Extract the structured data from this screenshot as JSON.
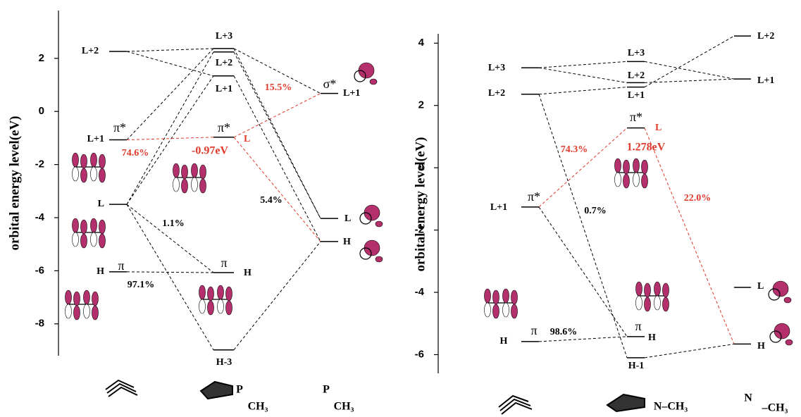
{
  "panels": [
    {
      "ylabel": "orbital energy level(eV)",
      "ylim": [
        -9.2,
        3.8
      ],
      "yticks": [
        2,
        0,
        -2,
        -4,
        -6,
        -8
      ],
      "columns": [
        {
          "levels": [
            {
              "label": "L+2",
              "energy": 2.26
            },
            {
              "label": "L+1",
              "energy": -1.07,
              "sym": "π*"
            },
            {
              "label": "L",
              "energy": -3.5
            },
            {
              "label": "H",
              "energy": -6.04,
              "sym": "π"
            }
          ]
        },
        {
          "levels": [
            {
              "label": "L+3",
              "energy": 2.37
            },
            {
              "label": "L+2",
              "energy": 2.24
            },
            {
              "label": "L+1",
              "energy": 1.34
            },
            {
              "label": "L",
              "energy": -0.97,
              "sym": "π*",
              "color": "#e03a2a",
              "energy_label": "-0.97eV"
            },
            {
              "label": "H",
              "energy": -6.07,
              "sym": "π"
            },
            {
              "label": "H-3",
              "energy": -8.98
            }
          ],
          "formula": [
            "P",
            "CH₃"
          ]
        },
        {
          "levels": [
            {
              "label": "L+1",
              "energy": 0.68,
              "sym": "σ*"
            },
            {
              "label": "L",
              "energy": -4.03
            },
            {
              "label": "H",
              "energy": -4.9
            }
          ],
          "formula": [
            "P",
            "CH₃"
          ]
        }
      ],
      "connections": [
        {
          "from": [
            0,
            0
          ],
          "to": [
            1,
            0
          ],
          "color": "#000000"
        },
        {
          "from": [
            0,
            0
          ],
          "to": [
            1,
            2
          ],
          "color": "#000000"
        },
        {
          "from": [
            0,
            1
          ],
          "to": [
            1,
            0
          ],
          "color": "#000000"
        },
        {
          "from": [
            0,
            2
          ],
          "to": [
            1,
            1
          ],
          "color": "#000000"
        },
        {
          "from": [
            0,
            2
          ],
          "to": [
            1,
            2
          ],
          "color": "#000000"
        },
        {
          "from": [
            0,
            1
          ],
          "to": [
            1,
            3
          ],
          "color": "#e03a2a",
          "label": "74.6%",
          "label_color": "#e03a2a"
        },
        {
          "from": [
            1,
            3
          ],
          "to": [
            2,
            0
          ],
          "color": "#e03a2a",
          "label": "15.5%",
          "label_color": "#e03a2a"
        },
        {
          "from": [
            1,
            3
          ],
          "to": [
            2,
            2
          ],
          "color": "#e03a2a",
          "label": "5.4%",
          "label_color": "#000000"
        },
        {
          "from": [
            0,
            2
          ],
          "to": [
            1,
            4
          ],
          "color": "#000000",
          "label": "1.1%",
          "label_color": "#000000"
        },
        {
          "from": [
            0,
            2
          ],
          "to": [
            1,
            5
          ],
          "color": "#000000"
        },
        {
          "from": [
            0,
            3
          ],
          "to": [
            1,
            4
          ],
          "color": "#000000",
          "label": "97.1%",
          "label_color": "#000000"
        },
        {
          "from": [
            1,
            0
          ],
          "to": [
            2,
            0
          ],
          "color": "#000000"
        },
        {
          "from": [
            1,
            0
          ],
          "to": [
            2,
            1
          ],
          "color": "#000000"
        },
        {
          "from": [
            1,
            1
          ],
          "to": [
            2,
            1
          ],
          "color": "#000000"
        },
        {
          "from": [
            1,
            2
          ],
          "to": [
            2,
            2
          ],
          "color": "#000000"
        },
        {
          "from": [
            1,
            5
          ],
          "to": [
            2,
            2
          ],
          "color": "#000000"
        }
      ]
    },
    {
      "ylabel": "orbital energy level(eV)",
      "ylim": [
        -6.6,
        4.3
      ],
      "yticks": [
        4,
        2,
        0,
        -2,
        -4,
        -6
      ],
      "columns": [
        {
          "levels": [
            {
              "label": "L+3",
              "energy": 3.21
            },
            {
              "label": "L+2",
              "energy": 2.36
            },
            {
              "label": "L+1",
              "energy": -1.26,
              "sym": "π*"
            },
            {
              "label": "H",
              "energy": -5.58,
              "sym": "π"
            }
          ]
        },
        {
          "levels": [
            {
              "label": "L+3",
              "energy": 3.41
            },
            {
              "label": "L+2",
              "energy": 2.73
            },
            {
              "label": "L+1",
              "energy": 2.59
            },
            {
              "label": "L",
              "energy": 1.278,
              "sym": "π*",
              "color": "#e03a2a",
              "energy_label": "1.278eV"
            },
            {
              "label": "H",
              "energy": -5.42,
              "sym": "π"
            },
            {
              "label": "H-1",
              "energy": -6.1
            }
          ],
          "formula": [
            "N–CH₃"
          ]
        },
        {
          "levels": [
            {
              "label": "L+2",
              "energy": 4.23
            },
            {
              "label": "L+1",
              "energy": 2.85
            },
            {
              "label": "L",
              "energy": -3.84
            },
            {
              "label": "H",
              "energy": -5.66
            }
          ],
          "formula": [
            "N",
            "–CH₃"
          ]
        }
      ],
      "connections": [
        {
          "from": [
            0,
            0
          ],
          "to": [
            1,
            0
          ],
          "color": "#000000"
        },
        {
          "from": [
            0,
            0
          ],
          "to": [
            1,
            1
          ],
          "color": "#000000"
        },
        {
          "from": [
            0,
            1
          ],
          "to": [
            1,
            2
          ],
          "color": "#000000"
        },
        {
          "from": [
            1,
            0
          ],
          "to": [
            2,
            1
          ],
          "color": "#000000"
        },
        {
          "from": [
            1,
            2
          ],
          "to": [
            2,
            0
          ],
          "color": "#000000"
        },
        {
          "from": [
            1,
            1
          ],
          "to": [
            2,
            1
          ],
          "color": "#000000"
        },
        {
          "from": [
            0,
            2
          ],
          "to": [
            1,
            3
          ],
          "color": "#e03a2a",
          "label": "74.3%",
          "label_color": "#e03a2a"
        },
        {
          "from": [
            1,
            3
          ],
          "to": [
            2,
            3
          ],
          "color": "#e03a2a",
          "label": "22.0%",
          "label_color": "#e03a2a"
        },
        {
          "from": [
            0,
            1
          ],
          "to": [
            1,
            5
          ],
          "color": "#000000",
          "label": "0.7%",
          "label_color": "#000000"
        },
        {
          "from": [
            0,
            2
          ],
          "to": [
            1,
            4
          ],
          "color": "#000000"
        },
        {
          "from": [
            0,
            3
          ],
          "to": [
            1,
            4
          ],
          "color": "#000000",
          "label": "98.6%",
          "label_color": "#000000"
        },
        {
          "from": [
            1,
            5
          ],
          "to": [
            2,
            3
          ],
          "color": "#000000"
        }
      ]
    }
  ]
}
